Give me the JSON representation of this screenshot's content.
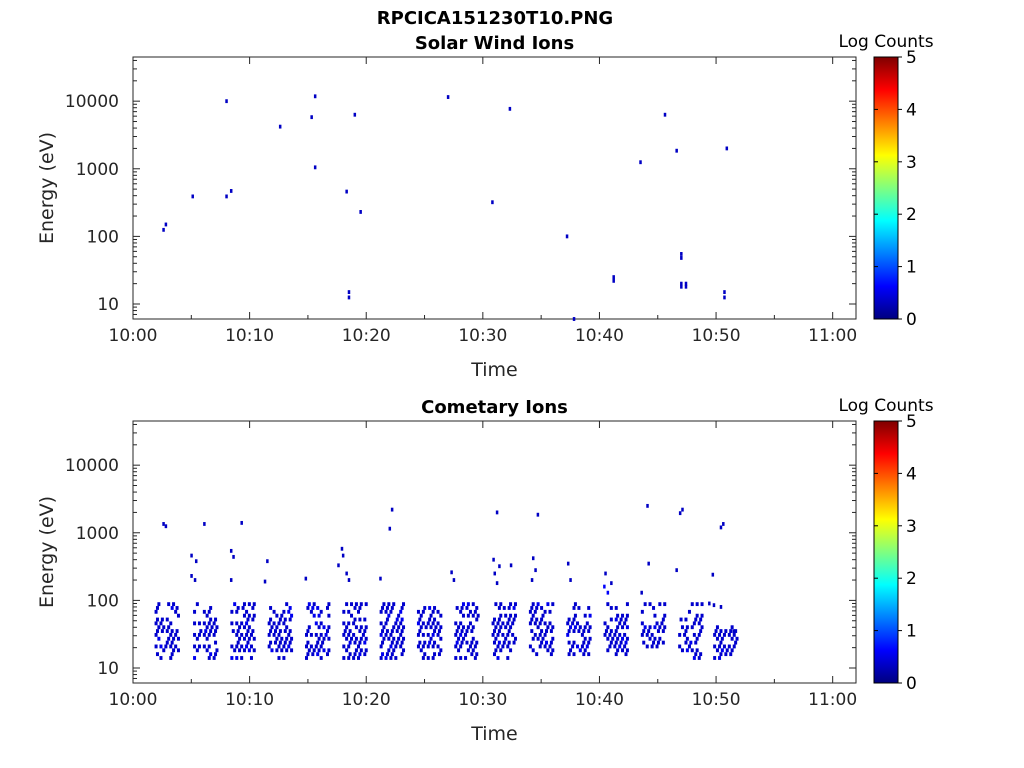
{
  "figure_title": "RPCICA151230T10.PNG",
  "colors": {
    "low": "#00008f",
    "mid_blue": "#0000cf",
    "bright_blue": "#1a3cff",
    "axis": "#262626"
  },
  "chart_data": [
    {
      "type": "heatmap",
      "title": "Solar Wind Ions",
      "xlabel": "Time",
      "ylabel": "Energy (eV)",
      "xlim": [
        "10:00",
        "11:02"
      ],
      "x_ticks": [
        "10:00",
        "10:10",
        "10:20",
        "10:30",
        "10:40",
        "10:50",
        "11:00"
      ],
      "y_scale": "log",
      "ylim": [
        6,
        45000
      ],
      "y_ticks": [
        "10",
        "100",
        "1000",
        "10000"
      ],
      "colorbar": {
        "label": "Log Counts",
        "range": [
          0,
          5
        ],
        "ticks": [
          "0",
          "1",
          "2",
          "3",
          "4",
          "5"
        ],
        "colormap": "jet"
      },
      "points": [
        {
          "t": 2.6,
          "e": 125,
          "c": 0.3
        },
        {
          "t": 2.8,
          "e": 150,
          "c": 0.3
        },
        {
          "t": 5.1,
          "e": 390,
          "c": 0.3
        },
        {
          "t": 8.0,
          "e": 10000,
          "c": 0.3
        },
        {
          "t": 8.0,
          "e": 390,
          "c": 0.3
        },
        {
          "t": 8.4,
          "e": 470,
          "c": 0.3
        },
        {
          "t": 12.6,
          "e": 4200,
          "c": 0.3
        },
        {
          "t": 15.3,
          "e": 5800,
          "c": 0.3
        },
        {
          "t": 15.6,
          "e": 11800,
          "c": 0.3
        },
        {
          "t": 15.6,
          "e": 1050,
          "c": 0.3
        },
        {
          "t": 18.3,
          "e": 460,
          "c": 0.3
        },
        {
          "t": 18.5,
          "e": 15,
          "c": 0.3
        },
        {
          "t": 18.5,
          "e": 12.5,
          "c": 0.3
        },
        {
          "t": 19.0,
          "e": 6300,
          "c": 0.3
        },
        {
          "t": 19.5,
          "e": 230,
          "c": 0.3
        },
        {
          "t": 27.0,
          "e": 11500,
          "c": 0.3
        },
        {
          "t": 30.8,
          "e": 320,
          "c": 0.3
        },
        {
          "t": 32.3,
          "e": 7700,
          "c": 0.3
        },
        {
          "t": 37.2,
          "e": 100,
          "c": 0.3
        },
        {
          "t": 37.8,
          "e": 6,
          "c": 0.3
        },
        {
          "t": 41.2,
          "e": 25,
          "c": 0.3
        },
        {
          "t": 41.2,
          "e": 22,
          "c": 0.3
        },
        {
          "t": 43.5,
          "e": 1250,
          "c": 0.3
        },
        {
          "t": 45.6,
          "e": 6300,
          "c": 0.3
        },
        {
          "t": 46.6,
          "e": 1850,
          "c": 0.3
        },
        {
          "t": 47.0,
          "e": 55,
          "c": 0.3
        },
        {
          "t": 47.0,
          "e": 48,
          "c": 0.3
        },
        {
          "t": 47.0,
          "e": 20,
          "c": 0.3
        },
        {
          "t": 47.0,
          "e": 18,
          "c": 0.3
        },
        {
          "t": 47.4,
          "e": 20,
          "c": 0.3
        },
        {
          "t": 47.4,
          "e": 18,
          "c": 0.3
        },
        {
          "t": 50.7,
          "e": 15,
          "c": 0.3
        },
        {
          "t": 50.7,
          "e": 12.5,
          "c": 0.3
        },
        {
          "t": 50.9,
          "e": 2000,
          "c": 0.3
        }
      ]
    },
    {
      "type": "heatmap",
      "title": "Cometary Ions",
      "xlabel": "Time",
      "ylabel": "Energy (eV)",
      "xlim": [
        "10:00",
        "11:02"
      ],
      "x_ticks": [
        "10:00",
        "10:10",
        "10:20",
        "10:30",
        "10:40",
        "10:50",
        "11:00"
      ],
      "y_scale": "log",
      "ylim": [
        6,
        45000
      ],
      "y_ticks": [
        "10",
        "100",
        "1000",
        "10000"
      ],
      "colorbar": {
        "label": "Log Counts",
        "range": [
          0,
          5
        ],
        "ticks": [
          "0",
          "1",
          "2",
          "3",
          "4",
          "5"
        ],
        "colormap": "jet"
      },
      "points": [
        {
          "t": 2.6,
          "e": 1350,
          "c": 0.3
        },
        {
          "t": 2.8,
          "e": 1250,
          "c": 0.3
        },
        {
          "t": 5.0,
          "e": 460,
          "c": 0.3
        },
        {
          "t": 5.4,
          "e": 380,
          "c": 0.3
        },
        {
          "t": 5.0,
          "e": 230,
          "c": 0.3
        },
        {
          "t": 5.3,
          "e": 200,
          "c": 0.3
        },
        {
          "t": 6.1,
          "e": 1350,
          "c": 0.3
        },
        {
          "t": 8.4,
          "e": 540,
          "c": 0.3
        },
        {
          "t": 8.6,
          "e": 440,
          "c": 0.3
        },
        {
          "t": 8.4,
          "e": 200,
          "c": 0.3
        },
        {
          "t": 9.3,
          "e": 1400,
          "c": 0.3
        },
        {
          "t": 11.5,
          "e": 380,
          "c": 0.3
        },
        {
          "t": 11.3,
          "e": 190,
          "c": 0.3
        },
        {
          "t": 14.8,
          "e": 210,
          "c": 0.3
        },
        {
          "t": 17.9,
          "e": 580,
          "c": 0.3
        },
        {
          "t": 18.0,
          "e": 460,
          "c": 0.3
        },
        {
          "t": 17.6,
          "e": 330,
          "c": 0.3
        },
        {
          "t": 18.3,
          "e": 250,
          "c": 0.3
        },
        {
          "t": 18.5,
          "e": 200,
          "c": 0.3
        },
        {
          "t": 21.2,
          "e": 210,
          "c": 0.3
        },
        {
          "t": 22.2,
          "e": 2200,
          "c": 0.3
        },
        {
          "t": 22.0,
          "e": 1150,
          "c": 0.3
        },
        {
          "t": 27.3,
          "e": 260,
          "c": 0.3
        },
        {
          "t": 27.5,
          "e": 200,
          "c": 0.3
        },
        {
          "t": 31.2,
          "e": 2000,
          "c": 0.3
        },
        {
          "t": 30.9,
          "e": 400,
          "c": 0.3
        },
        {
          "t": 31.4,
          "e": 320,
          "c": 0.3
        },
        {
          "t": 31.0,
          "e": 250,
          "c": 0.3
        },
        {
          "t": 31.2,
          "e": 180,
          "c": 0.3
        },
        {
          "t": 32.4,
          "e": 330,
          "c": 0.3
        },
        {
          "t": 34.7,
          "e": 1850,
          "c": 0.3
        },
        {
          "t": 34.3,
          "e": 420,
          "c": 0.3
        },
        {
          "t": 34.5,
          "e": 280,
          "c": 0.3
        },
        {
          "t": 34.2,
          "e": 200,
          "c": 0.3
        },
        {
          "t": 37.3,
          "e": 350,
          "c": 0.3
        },
        {
          "t": 37.5,
          "e": 200,
          "c": 0.3
        },
        {
          "t": 40.5,
          "e": 250,
          "c": 0.3
        },
        {
          "t": 40.4,
          "e": 160,
          "c": 0.9
        },
        {
          "t": 40.7,
          "e": 130,
          "c": 0.9
        },
        {
          "t": 41.0,
          "e": 180,
          "c": 0.3
        },
        {
          "t": 44.1,
          "e": 2500,
          "c": 0.3
        },
        {
          "t": 44.2,
          "e": 350,
          "c": 0.3
        },
        {
          "t": 43.6,
          "e": 130,
          "c": 0.3
        },
        {
          "t": 46.6,
          "e": 280,
          "c": 0.3
        },
        {
          "t": 47.1,
          "e": 2200,
          "c": 0.3
        },
        {
          "t": 46.9,
          "e": 1950,
          "c": 0.3
        },
        {
          "t": 49.7,
          "e": 240,
          "c": 0.3
        },
        {
          "t": 50.6,
          "e": 1350,
          "c": 0.3
        },
        {
          "t": 50.4,
          "e": 1200,
          "c": 0.3
        },
        {
          "t": 49.4,
          "e": 90,
          "c": 0.3
        },
        {
          "t": 49.8,
          "e": 85,
          "c": 0.3
        },
        {
          "t": 50.4,
          "e": 80,
          "c": 0.3
        },
        {
          "t": 51.5,
          "e": 35,
          "c": 0.3
        }
      ],
      "ridges": [
        {
          "t": 2.1,
          "emin": 13,
          "emax": 90
        },
        {
          "t": 5.4,
          "emin": 13,
          "emax": 90
        },
        {
          "t": 8.6,
          "emin": 13,
          "emax": 90
        },
        {
          "t": 11.8,
          "emin": 13,
          "emax": 90
        },
        {
          "t": 15.0,
          "emin": 13,
          "emax": 90
        },
        {
          "t": 18.2,
          "emin": 13,
          "emax": 90
        },
        {
          "t": 21.4,
          "emin": 13,
          "emax": 90
        },
        {
          "t": 24.6,
          "emin": 13,
          "emax": 75
        },
        {
          "t": 27.8,
          "emin": 13,
          "emax": 90
        },
        {
          "t": 31.0,
          "emin": 13,
          "emax": 90
        },
        {
          "t": 34.2,
          "emin": 14,
          "emax": 90
        },
        {
          "t": 37.4,
          "emin": 15,
          "emax": 90
        },
        {
          "t": 40.6,
          "emin": 15,
          "emax": 90
        },
        {
          "t": 43.8,
          "emin": 18,
          "emax": 90
        },
        {
          "t": 47.0,
          "emin": 13,
          "emax": 90
        },
        {
          "t": 50.0,
          "emin": 13,
          "emax": 40
        }
      ]
    }
  ]
}
